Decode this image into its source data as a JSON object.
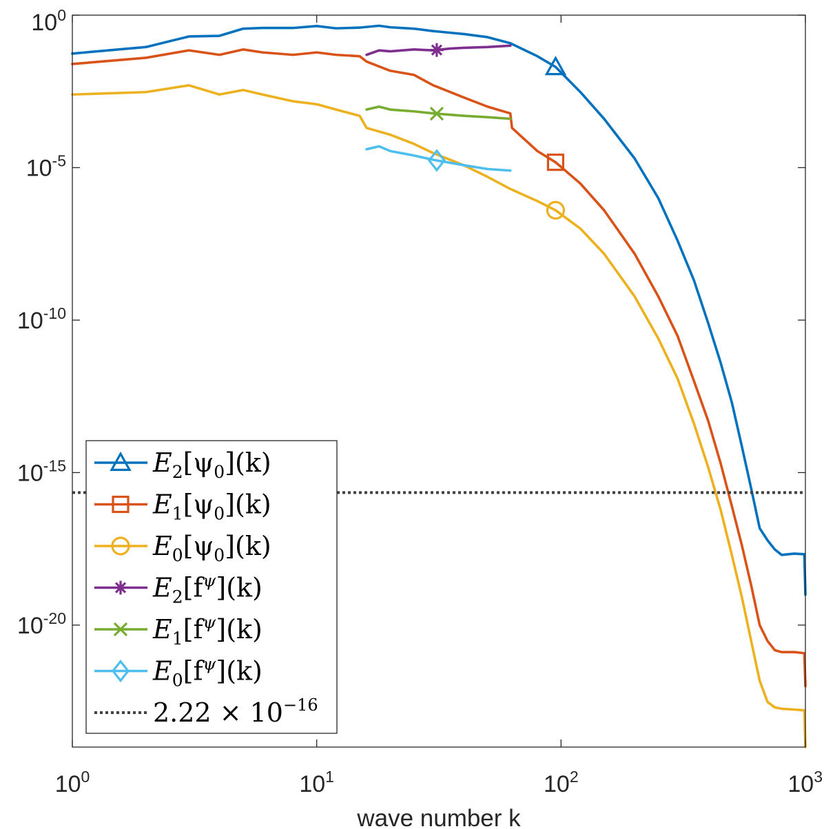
{
  "chart_data": {
    "type": "line",
    "title": "",
    "xlabel": "wave number k",
    "ylabel": "",
    "xscale": "log",
    "yscale": "log",
    "xlim": [
      1,
      1000
    ],
    "ylim": [
      1e-24,
      1
    ],
    "x_ticks": [
      {
        "value": 1,
        "mantissa": "10",
        "exponent": "0"
      },
      {
        "value": 10,
        "mantissa": "10",
        "exponent": "1"
      },
      {
        "value": 100,
        "mantissa": "10",
        "exponent": "2"
      },
      {
        "value": 1000,
        "mantissa": "10",
        "exponent": "3"
      }
    ],
    "y_ticks": [
      {
        "value": 1,
        "mantissa": "10",
        "exponent": "0"
      },
      {
        "value": 1e-05,
        "mantissa": "10",
        "exponent": "-5"
      },
      {
        "value": 1e-10,
        "mantissa": "10",
        "exponent": "-10"
      },
      {
        "value": 1e-15,
        "mantissa": "10",
        "exponent": "-15"
      },
      {
        "value": 1e-20,
        "mantissa": "10",
        "exponent": "-20"
      }
    ],
    "legend_position": "bottom-left",
    "series": [
      {
        "name": "E_2[psi_0](k)",
        "legend": {
          "base": "E",
          "sub": "2",
          "rest": "[ψ",
          "sub2": "0",
          "tail": "](k)"
        },
        "color": "#0072BD",
        "marker": "triangle",
        "marker_k": 95,
        "points": [
          [
            1,
            0.055
          ],
          [
            2,
            0.09
          ],
          [
            3,
            0.2
          ],
          [
            4,
            0.21
          ],
          [
            5,
            0.36
          ],
          [
            6,
            0.38
          ],
          [
            8,
            0.38
          ],
          [
            10,
            0.44
          ],
          [
            12,
            0.37
          ],
          [
            15,
            0.39
          ],
          [
            18,
            0.45
          ],
          [
            20,
            0.4
          ],
          [
            25,
            0.36
          ],
          [
            30,
            0.3
          ],
          [
            40,
            0.24
          ],
          [
            50,
            0.19
          ],
          [
            62,
            0.12
          ],
          [
            80,
            0.045
          ],
          [
            95,
            0.02
          ],
          [
            120,
            0.003
          ],
          [
            150,
            0.0004
          ],
          [
            200,
            2e-05
          ],
          [
            250,
            1e-06
          ],
          [
            300,
            4e-08
          ],
          [
            350,
            2e-09
          ],
          [
            400,
            8e-11
          ],
          [
            450,
            4e-12
          ],
          [
            500,
            2e-13
          ],
          [
            550,
            7e-15
          ],
          [
            600,
            3e-16
          ],
          [
            650,
            1.5e-17
          ],
          [
            700,
            6e-18
          ],
          [
            750,
            3e-18
          ],
          [
            800,
            2e-18
          ],
          [
            900,
            2.2e-18
          ],
          [
            990,
            2.1e-18
          ],
          [
            1000,
            1e-19
          ]
        ]
      },
      {
        "name": "E_1[psi_0](k)",
        "legend": {
          "base": "E",
          "sub": "1",
          "rest": "[ψ",
          "sub2": "0",
          "tail": "](k)"
        },
        "color": "#D95319",
        "marker": "square",
        "marker_k": 95,
        "points": [
          [
            1,
            0.025
          ],
          [
            2,
            0.04
          ],
          [
            3,
            0.07
          ],
          [
            4,
            0.05
          ],
          [
            5,
            0.075
          ],
          [
            6,
            0.06
          ],
          [
            8,
            0.05
          ],
          [
            10,
            0.06
          ],
          [
            12,
            0.05
          ],
          [
            15,
            0.045
          ],
          [
            16,
            0.03
          ],
          [
            20,
            0.015
          ],
          [
            25,
            0.011
          ],
          [
            30,
            0.005
          ],
          [
            40,
            0.002
          ],
          [
            50,
            0.001
          ],
          [
            62,
            0.0006
          ],
          [
            63,
            0.0002
          ],
          [
            80,
            3.5e-05
          ],
          [
            95,
            1.5e-05
          ],
          [
            120,
            3e-06
          ],
          [
            150,
            4e-07
          ],
          [
            200,
            1.5e-08
          ],
          [
            250,
            6e-10
          ],
          [
            300,
            3e-11
          ],
          [
            350,
            1e-12
          ],
          [
            400,
            5e-14
          ],
          [
            450,
            2e-15
          ],
          [
            500,
            8e-17
          ],
          [
            550,
            4e-18
          ],
          [
            600,
            2e-19
          ],
          [
            650,
            1e-20
          ],
          [
            700,
            3e-21
          ],
          [
            750,
            1.5e-21
          ],
          [
            800,
            1.3e-21
          ],
          [
            900,
            1.3e-21
          ],
          [
            990,
            1.2e-21
          ],
          [
            1000,
            1e-22
          ]
        ]
      },
      {
        "name": "E_0[psi_0](k)",
        "legend": {
          "base": "E",
          "sub": "0",
          "rest": "[ψ",
          "sub2": "0",
          "tail": "](k)"
        },
        "color": "#EDB120",
        "marker": "circle",
        "marker_k": 95,
        "points": [
          [
            1,
            0.0025
          ],
          [
            2,
            0.003
          ],
          [
            3,
            0.005
          ],
          [
            4,
            0.0025
          ],
          [
            5,
            0.0035
          ],
          [
            6,
            0.0025
          ],
          [
            8,
            0.0015
          ],
          [
            10,
            0.0012
          ],
          [
            12,
            0.0008
          ],
          [
            15,
            0.0005
          ],
          [
            16,
            0.0002
          ],
          [
            20,
            0.00012
          ],
          [
            25,
            6e-05
          ],
          [
            30,
            3e-05
          ],
          [
            40,
            1.2e-05
          ],
          [
            50,
            5e-06
          ],
          [
            62,
            2e-06
          ],
          [
            80,
            8e-07
          ],
          [
            95,
            4e-07
          ],
          [
            120,
            1e-07
          ],
          [
            150,
            1.5e-08
          ],
          [
            200,
            6e-10
          ],
          [
            250,
            2.5e-11
          ],
          [
            300,
            1.2e-12
          ],
          [
            350,
            4e-14
          ],
          [
            400,
            1.5e-15
          ],
          [
            450,
            6e-17
          ],
          [
            500,
            2e-18
          ],
          [
            550,
            8e-20
          ],
          [
            600,
            3e-21
          ],
          [
            650,
            1.5e-22
          ],
          [
            700,
            3e-23
          ],
          [
            750,
            2e-23
          ],
          [
            800,
            1.8e-23
          ],
          [
            900,
            1.7e-23
          ],
          [
            990,
            1.6e-23
          ],
          [
            1000,
            1e-24
          ]
        ]
      },
      {
        "name": "E_2[f^psi](k)",
        "legend": {
          "base": "E",
          "sub": "2",
          "rest": "[f",
          "sup": "ψ",
          "tail": "](k)"
        },
        "color": "#7E2F8E",
        "marker": "asterisk",
        "marker_k": 31,
        "points": [
          [
            16,
            0.05
          ],
          [
            18,
            0.07
          ],
          [
            20,
            0.065
          ],
          [
            25,
            0.075
          ],
          [
            30,
            0.07
          ],
          [
            35,
            0.08
          ],
          [
            40,
            0.085
          ],
          [
            50,
            0.09
          ],
          [
            62,
            0.1
          ]
        ]
      },
      {
        "name": "E_1[f^psi](k)",
        "legend": {
          "base": "E",
          "sub": "1",
          "rest": "[f",
          "sup": "ψ",
          "tail": "](k)"
        },
        "color": "#77AC30",
        "marker": "cross",
        "marker_k": 31,
        "points": [
          [
            16,
            0.0008
          ],
          [
            18,
            0.001
          ],
          [
            20,
            0.0008
          ],
          [
            25,
            0.0007
          ],
          [
            30,
            0.0006
          ],
          [
            40,
            0.0005
          ],
          [
            50,
            0.00045
          ],
          [
            62,
            0.0004
          ]
        ]
      },
      {
        "name": "E_0[f^psi](k)",
        "legend": {
          "base": "E",
          "sub": "0",
          "rest": "[f",
          "sup": "ψ",
          "tail": "](k)"
        },
        "color": "#4DBEEE",
        "marker": "diamond",
        "marker_k": 31,
        "points": [
          [
            16,
            4e-05
          ],
          [
            18,
            5e-05
          ],
          [
            20,
            3.5e-05
          ],
          [
            25,
            2.5e-05
          ],
          [
            30,
            1.8e-05
          ],
          [
            40,
            1.2e-05
          ],
          [
            50,
            9e-06
          ],
          [
            62,
            8e-06
          ]
        ]
      },
      {
        "name": "2.22 × 10^-16",
        "legend": {
          "mantissa": "2.22 × 10",
          "exponent": "−16"
        },
        "color": "#404040",
        "marker": "none",
        "style": "dotted",
        "points": [
          [
            1,
            2.22e-16
          ],
          [
            1000,
            2.22e-16
          ]
        ]
      }
    ]
  }
}
